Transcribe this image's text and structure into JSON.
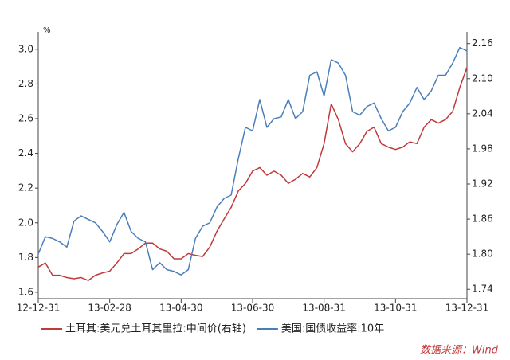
{
  "chart_data": {
    "type": "line",
    "unit_label": "%",
    "source": "数据来源：Wind",
    "categories": [
      "12-12-31",
      null,
      null,
      null,
      null,
      null,
      null,
      null,
      null,
      null,
      "13-02-28",
      null,
      null,
      null,
      null,
      null,
      null,
      null,
      null,
      null,
      "13-04-30",
      null,
      null,
      null,
      null,
      null,
      null,
      null,
      null,
      null,
      "13-06-30",
      null,
      null,
      null,
      null,
      null,
      null,
      null,
      null,
      null,
      "13-08-31",
      null,
      null,
      null,
      null,
      null,
      null,
      null,
      null,
      null,
      "13-10-31",
      null,
      null,
      null,
      null,
      null,
      null,
      null,
      null,
      null,
      "13-12-31"
    ],
    "series": [
      {
        "name": "土耳其:美元兑土耳其里拉:中间价(右轴)",
        "color": "#c0393b",
        "axis": "y2",
        "values": [
          1.778,
          1.785,
          1.764,
          1.764,
          1.76,
          1.758,
          1.76,
          1.755,
          1.764,
          1.768,
          1.771,
          1.785,
          1.801,
          1.801,
          1.809,
          1.819,
          1.819,
          1.809,
          1.805,
          1.792,
          1.792,
          1.801,
          1.798,
          1.796,
          1.812,
          1.839,
          1.86,
          1.88,
          1.908,
          1.921,
          1.942,
          1.948,
          1.935,
          1.942,
          1.935,
          1.921,
          1.928,
          1.938,
          1.932,
          1.948,
          1.989,
          2.057,
          2.03,
          1.989,
          1.975,
          1.989,
          2.01,
          2.017,
          1.989,
          1.983,
          1.979,
          1.983,
          1.992,
          1.989,
          2.017,
          2.03,
          2.024,
          2.03,
          2.044,
          2.085,
          2.119
        ]
      },
      {
        "name": "美国:国债收益率:10年",
        "color": "#4a7ebb",
        "values": [
          1.82,
          1.92,
          1.91,
          1.89,
          1.86,
          2.01,
          2.04,
          2.02,
          2.0,
          1.95,
          1.89,
          1.99,
          2.06,
          1.95,
          1.91,
          1.89,
          1.73,
          1.77,
          1.73,
          1.72,
          1.7,
          1.73,
          1.91,
          1.98,
          2.0,
          2.09,
          2.14,
          2.16,
          2.37,
          2.55,
          2.53,
          2.71,
          2.55,
          2.6,
          2.61,
          2.71,
          2.6,
          2.64,
          2.85,
          2.87,
          2.73,
          2.94,
          2.92,
          2.85,
          2.64,
          2.62,
          2.67,
          2.69,
          2.6,
          2.53,
          2.55,
          2.64,
          2.69,
          2.78,
          2.71,
          2.76,
          2.85,
          2.85,
          2.92,
          3.01,
          2.99
        ]
      }
    ],
    "ylim": [
      1.563,
      3.1
    ],
    "yticks": [
      1.6,
      1.8,
      {
        "value": 2.0,
        "label": "2.0"
      },
      2.2,
      2.4,
      2.6,
      2.8,
      {
        "value": 3.0,
        "label": "3.0"
      }
    ],
    "y2lim": [
      1.724,
      2.18
    ],
    "y2ticks": [
      1.74,
      {
        "value": 1.8,
        "label": "1.80"
      },
      1.86,
      1.92,
      1.98,
      2.04,
      {
        "value": 2.1,
        "label": "2.10"
      },
      2.16
    ],
    "grid": false,
    "legend": "bottom"
  }
}
